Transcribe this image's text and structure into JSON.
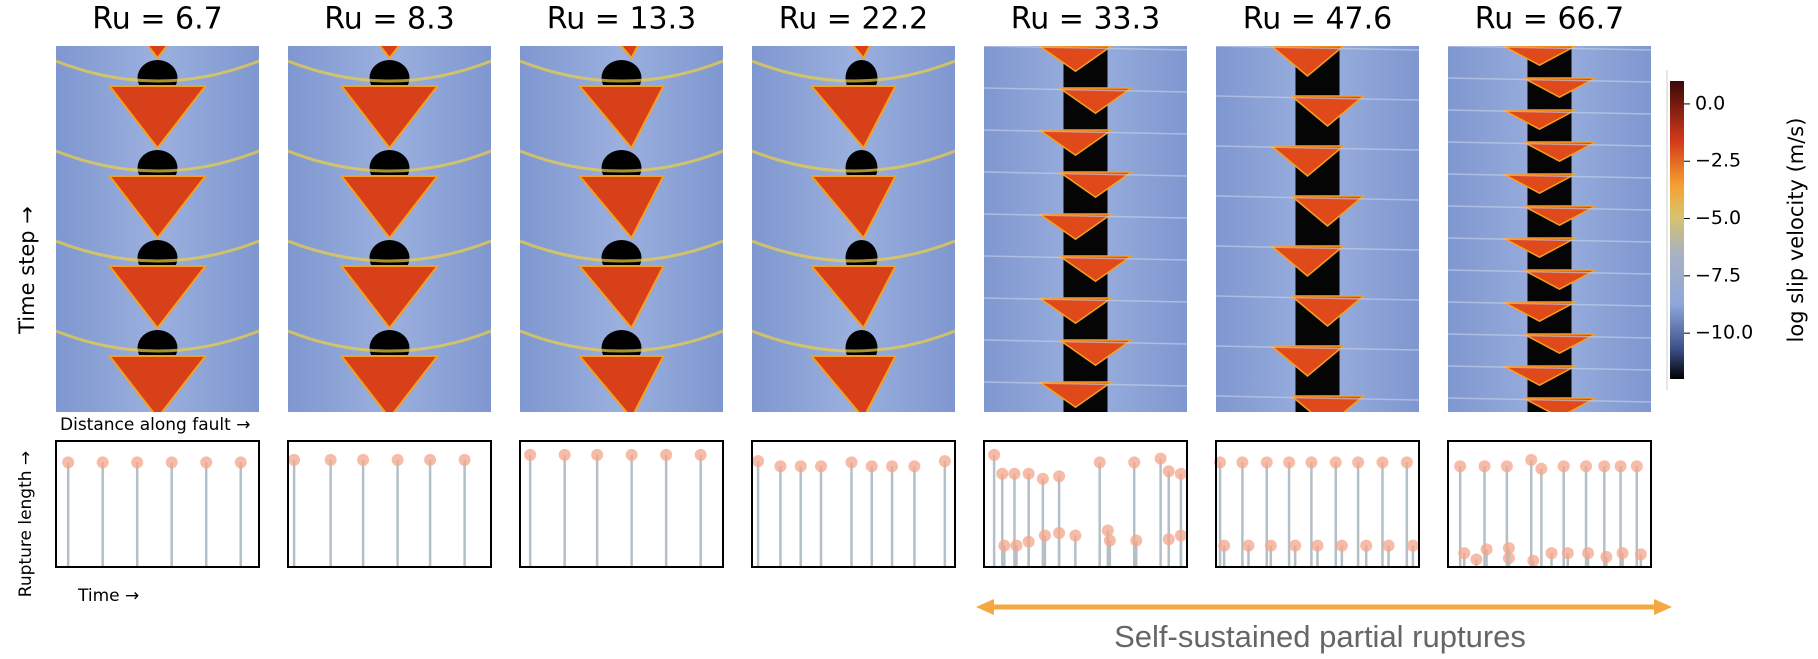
{
  "figure": {
    "ylabel_top": "Time step →",
    "xlabel_top": "Distance along fault →",
    "ylabel_bottom": "Rupture length →",
    "xlabel_bottom": "Time →",
    "annotation": "Self-sustained partial ruptures"
  },
  "colorbar": {
    "label": "log slip velocity (m/s)",
    "ylim": [
      -12,
      1
    ],
    "yticks": [
      {
        "value": 0,
        "label": "0.0"
      },
      {
        "value": -2.5,
        "label": "−2.5"
      },
      {
        "value": -5,
        "label": "−5.0"
      },
      {
        "value": -7.5,
        "label": "−7.5"
      },
      {
        "value": -10,
        "label": "−10.0"
      }
    ]
  },
  "chart_data": [
    {
      "type": "stem",
      "title": "Ru = 6.7",
      "color": "#f4a58a",
      "xlim": [
        0,
        1
      ],
      "ylim": [
        0,
        1
      ],
      "x": [
        0.06,
        0.23,
        0.4,
        0.57,
        0.74,
        0.91
      ],
      "values": [
        0.83,
        0.83,
        0.83,
        0.83,
        0.83,
        0.83
      ]
    },
    {
      "type": "stem",
      "title": "Ru = 8.3",
      "color": "#f4a58a",
      "xlim": [
        0,
        1
      ],
      "ylim": [
        0,
        1
      ],
      "x": [
        0.03,
        0.21,
        0.37,
        0.54,
        0.7,
        0.87
      ],
      "values": [
        0.85,
        0.85,
        0.85,
        0.85,
        0.85,
        0.85
      ]
    },
    {
      "type": "stem",
      "title": "Ru = 13.3",
      "color": "#f4a58a",
      "xlim": [
        0,
        1
      ],
      "ylim": [
        0,
        1
      ],
      "x": [
        0.05,
        0.22,
        0.38,
        0.55,
        0.72,
        0.89
      ],
      "values": [
        0.89,
        0.89,
        0.89,
        0.89,
        0.89,
        0.89
      ]
    },
    {
      "type": "stem",
      "title": "Ru = 22.2",
      "color": "#f4a58a",
      "xlim": [
        0,
        1
      ],
      "ylim": [
        0,
        1
      ],
      "x": [
        0.03,
        0.14,
        0.24,
        0.34,
        0.49,
        0.59,
        0.69,
        0.8,
        0.95
      ],
      "values": [
        0.84,
        0.8,
        0.8,
        0.8,
        0.83,
        0.8,
        0.8,
        0.8,
        0.84
      ]
    },
    {
      "type": "stem",
      "title": "Ru = 33.3",
      "color": "#f4a58a",
      "xlim": [
        0,
        1
      ],
      "ylim": [
        0,
        1
      ],
      "x": [
        0.05,
        0.09,
        0.1,
        0.15,
        0.16,
        0.22,
        0.22,
        0.29,
        0.3,
        0.37,
        0.37,
        0.45,
        0.57,
        0.61,
        0.62,
        0.74,
        0.75,
        0.87,
        0.91,
        0.91,
        0.97,
        0.97
      ],
      "values": [
        0.89,
        0.74,
        0.17,
        0.74,
        0.17,
        0.74,
        0.2,
        0.7,
        0.25,
        0.72,
        0.27,
        0.25,
        0.83,
        0.29,
        0.21,
        0.83,
        0.21,
        0.86,
        0.76,
        0.22,
        0.74,
        0.25
      ]
    },
    {
      "type": "stem",
      "title": "Ru = 47.6",
      "color": "#f4a58a",
      "xlim": [
        0,
        1
      ],
      "ylim": [
        0,
        1
      ],
      "x": [
        0.02,
        0.04,
        0.13,
        0.16,
        0.25,
        0.27,
        0.36,
        0.39,
        0.47,
        0.5,
        0.59,
        0.62,
        0.7,
        0.74,
        0.82,
        0.85,
        0.94,
        0.97
      ],
      "values": [
        0.83,
        0.17,
        0.83,
        0.17,
        0.83,
        0.17,
        0.83,
        0.17,
        0.83,
        0.17,
        0.83,
        0.17,
        0.83,
        0.17,
        0.83,
        0.17,
        0.83,
        0.17
      ]
    },
    {
      "type": "stem",
      "title": "Ru = 66.7",
      "color": "#f4a58a",
      "xlim": [
        0,
        1
      ],
      "ylim": [
        0,
        1
      ],
      "x": [
        0.06,
        0.08,
        0.14,
        0.18,
        0.19,
        0.29,
        0.3,
        0.3,
        0.41,
        0.42,
        0.46,
        0.51,
        0.57,
        0.59,
        0.68,
        0.69,
        0.77,
        0.78,
        0.85,
        0.86,
        0.93,
        0.95
      ],
      "values": [
        0.8,
        0.11,
        0.06,
        0.8,
        0.14,
        0.8,
        0.07,
        0.15,
        0.85,
        0.05,
        0.78,
        0.11,
        0.8,
        0.11,
        0.8,
        0.11,
        0.8,
        0.08,
        0.8,
        0.11,
        0.8,
        0.1
      ]
    }
  ]
}
